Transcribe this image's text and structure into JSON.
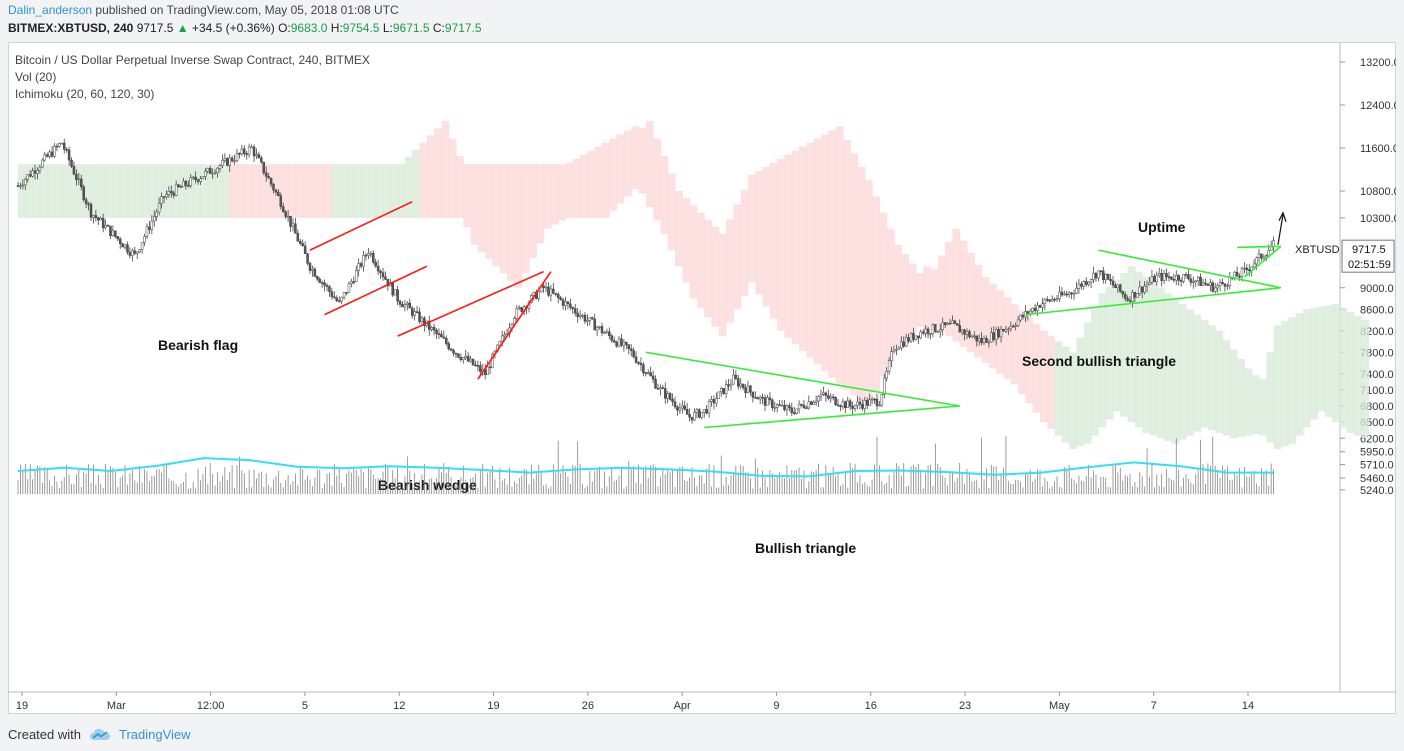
{
  "publish": {
    "author": "Dalin_anderson",
    "text": "published on TradingView.com, May 05, 2018 01:08 UTC"
  },
  "symbol": {
    "ticker": "BITMEX:XBTUSD, 240",
    "price": "9717.5",
    "change": "+34.5 (+0.36%)",
    "o_label": "O:",
    "o_value": "9683.0",
    "h_label": "H:",
    "h_value": "9754.5",
    "l_label": "L:",
    "l_value": "9671.5",
    "c_label": "C:",
    "c_value": "9717.5"
  },
  "legend": {
    "title": "Bitcoin / US Dollar Perpetual Inverse Swap Contract, 240, BITMEX",
    "vol": "Vol (20)",
    "ichimoku": "Ichimoku (20, 60, 120, 30)"
  },
  "footer": {
    "created_with": "Created with",
    "brand": "TradingView"
  },
  "colors": {
    "bull_candle": "#ffffff",
    "bear_candle": "#555555",
    "pattern_red": "#ff1a1a",
    "pattern_green": "#33ee33",
    "cloud_green": "#d6ead6",
    "cloud_red": "#fcd7d7",
    "volume_ma": "#33e0f0",
    "volume_bars": "#666666"
  },
  "chart_data": {
    "type": "candlestick",
    "y_range": [
      5160,
      13450
    ],
    "price_ticks": [
      "13200.0",
      "12400.0",
      "11600.0",
      "10800.0",
      "10300.0",
      "9000.0",
      "8600.0",
      "8200.0",
      "7800.0",
      "7400.0",
      "7100.0",
      "6800.0",
      "6500.0",
      "6200.0",
      "5950.0",
      "5710.0",
      "5460.0",
      "5240.0"
    ],
    "x_ticks": [
      "19",
      "Mar",
      "12:00",
      "5",
      "12",
      "19",
      "26",
      "Apr",
      "9",
      "16",
      "23",
      "May",
      "7",
      "14"
    ],
    "last_price": {
      "symbol": "XBTUSD",
      "price": "9717.5",
      "countdown": "02:51:59"
    },
    "price_path": [
      {
        "day": 0,
        "price": 10900
      },
      {
        "day": 3,
        "price": 11700
      },
      {
        "day": 5,
        "price": 10400
      },
      {
        "day": 8,
        "price": 9600
      },
      {
        "day": 10,
        "price": 10700
      },
      {
        "day": 14,
        "price": 11300
      },
      {
        "day": 16,
        "price": 11600
      },
      {
        "day": 18,
        "price": 10600
      },
      {
        "day": 20,
        "price": 9400
      },
      {
        "day": 22,
        "price": 8700
      },
      {
        "day": 24,
        "price": 9700
      },
      {
        "day": 26,
        "price": 8800
      },
      {
        "day": 28,
        "price": 8300
      },
      {
        "day": 30,
        "price": 7800
      },
      {
        "day": 32,
        "price": 7400
      },
      {
        "day": 34,
        "price": 8500
      },
      {
        "day": 36,
        "price": 9000
      },
      {
        "day": 38,
        "price": 8600
      },
      {
        "day": 40,
        "price": 8200
      },
      {
        "day": 42,
        "price": 7800
      },
      {
        "day": 44,
        "price": 7100
      },
      {
        "day": 46,
        "price": 6600
      },
      {
        "day": 47,
        "price": 6700
      },
      {
        "day": 49,
        "price": 7300
      },
      {
        "day": 51,
        "price": 6900
      },
      {
        "day": 53,
        "price": 6700
      },
      {
        "day": 55,
        "price": 7000
      },
      {
        "day": 57,
        "price": 6800
      },
      {
        "day": 59,
        "price": 6900
      },
      {
        "day": 60,
        "price": 7900
      },
      {
        "day": 62,
        "price": 8200
      },
      {
        "day": 64,
        "price": 8300
      },
      {
        "day": 66,
        "price": 8000
      },
      {
        "day": 68,
        "price": 8300
      },
      {
        "day": 70,
        "price": 8700
      },
      {
        "day": 72,
        "price": 8900
      },
      {
        "day": 74,
        "price": 9300
      },
      {
        "day": 76,
        "price": 8800
      },
      {
        "day": 78,
        "price": 9200
      },
      {
        "day": 80,
        "price": 9200
      },
      {
        "day": 82,
        "price": 9000
      },
      {
        "day": 84,
        "price": 9300
      },
      {
        "day": 86,
        "price": 9800
      }
    ],
    "patterns": [
      {
        "label": "Bearish flag",
        "color": "red",
        "lines": [
          [
            [
              20,
              9700
            ],
            [
              27,
              10600
            ]
          ],
          [
            [
              21,
              8500
            ],
            [
              28,
              9400
            ]
          ]
        ]
      },
      {
        "label": "Bearish wedge",
        "color": "red",
        "lines": [
          [
            [
              26,
              8100
            ],
            [
              36,
              9300
            ]
          ],
          [
            [
              31.5,
              7300
            ],
            [
              36.5,
              9300
            ]
          ]
        ]
      },
      {
        "label": "Bullish triangle",
        "color": "green",
        "lines": [
          [
            [
              43,
              7800
            ],
            [
              64.5,
              6800
            ]
          ],
          [
            [
              47,
              6400
            ],
            [
              64.5,
              6800
            ]
          ]
        ]
      },
      {
        "label": "Second bullish triangle",
        "color": "green",
        "lines": [
          [
            [
              74,
              9700
            ],
            [
              86.5,
              9000
            ]
          ],
          [
            [
              69,
              8500
            ],
            [
              86.5,
              9000
            ]
          ]
        ]
      },
      {
        "label": "Uptime",
        "color": "green",
        "lines": [
          [
            [
              83.5,
              9750
            ],
            [
              86.5,
              9770
            ]
          ],
          [
            [
              84,
              9200
            ],
            [
              86.5,
              9770
            ]
          ]
        ]
      }
    ],
    "volume_ma_levels": [
      5590,
      5650,
      5590,
      5690,
      5830,
      5790,
      5670,
      5640,
      5680,
      5650,
      5610,
      5560,
      5620,
      5650,
      5620,
      5580,
      5500,
      5490,
      5590,
      5600,
      5570,
      5520,
      5560,
      5660,
      5750,
      5680,
      5560,
      5560
    ]
  }
}
